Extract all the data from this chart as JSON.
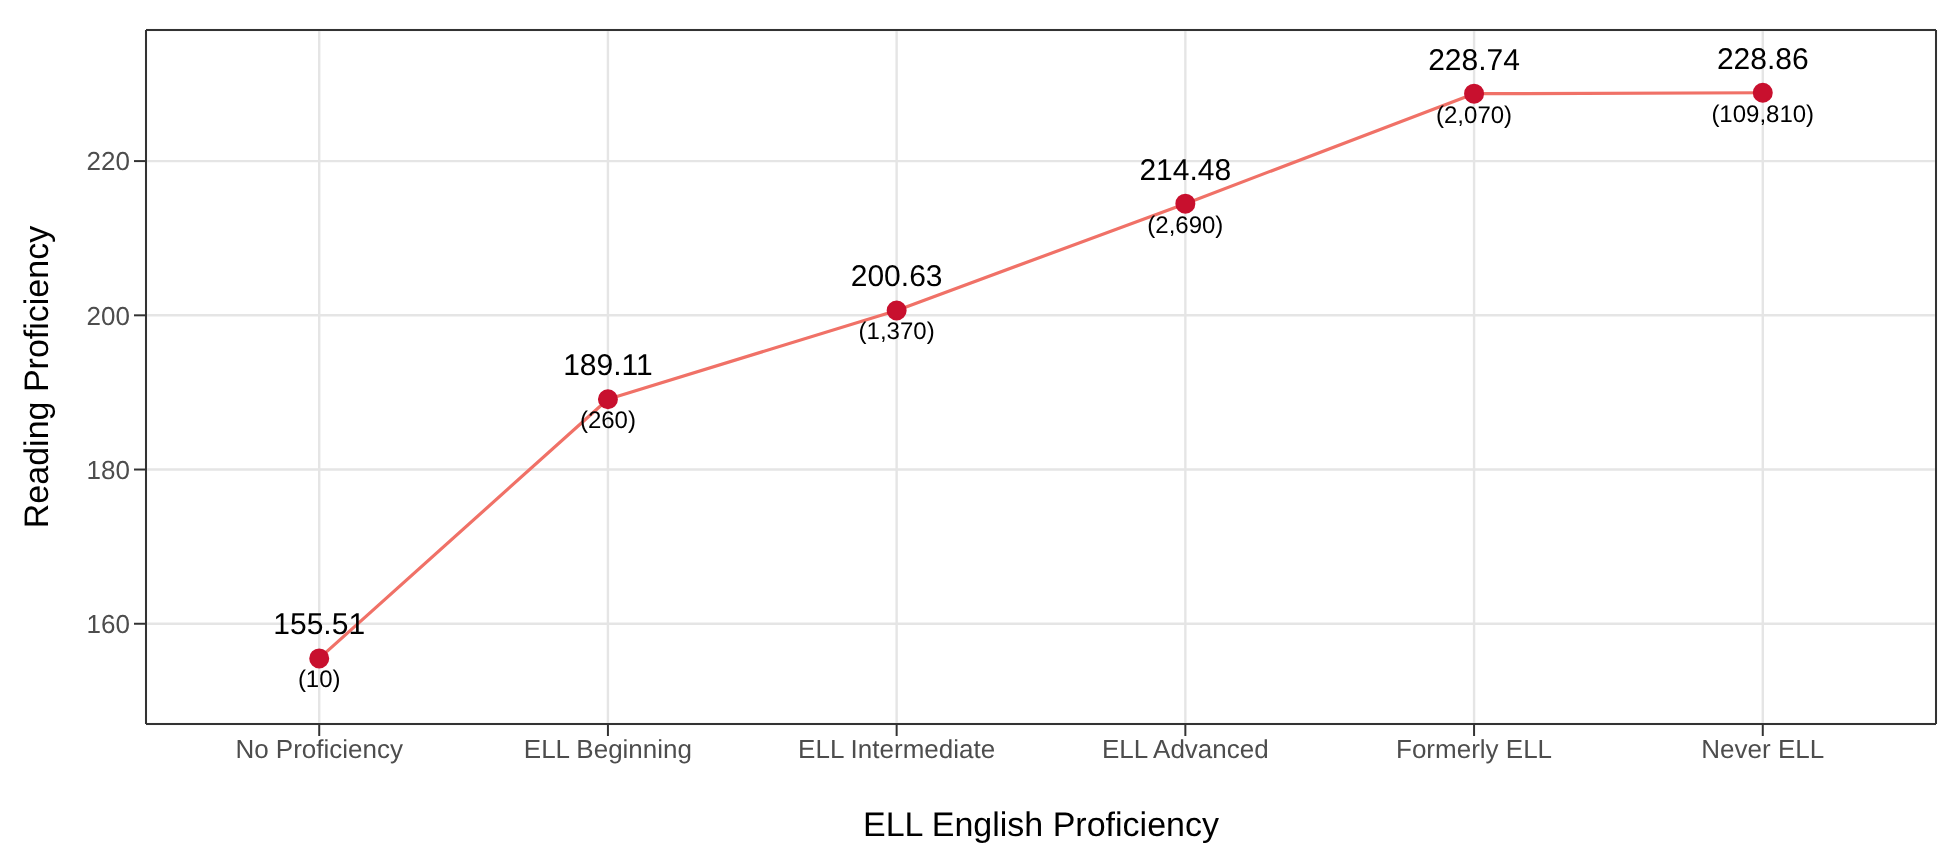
{
  "chart_data": {
    "type": "line",
    "xlabel": "ELL English Proficiency",
    "ylabel": "Reading Proficiency",
    "categories": [
      "No Proficiency",
      "ELL Beginning",
      "ELL Intermediate",
      "ELL Advanced",
      "Formerly ELL",
      "Never ELL"
    ],
    "series": [
      {
        "color": "#f07167",
        "colors": [
          "#c8102e",
          "#c8102e",
          "#c8102e",
          "#c8102e",
          "#c8102e",
          "#c8102e"
        ],
        "values": [
          155.51,
          189.11,
          200.63,
          214.48,
          228.74,
          228.86
        ]
      }
    ],
    "data_labels": true,
    "annotations": [
      {
        "text": "(10)",
        "x": "No Proficiency",
        "y": 155.51
      },
      {
        "text": "(260)",
        "x": "ELL Beginning",
        "y": 189.11
      },
      {
        "text": "(1,370)",
        "x": "ELL Intermediate",
        "y": 200.63
      },
      {
        "text": "(2,690)",
        "x": "ELL Advanced",
        "y": 214.48
      },
      {
        "text": "(2,070)",
        "x": "Formerly ELL",
        "y": 228.74
      },
      {
        "text": "(109,810)",
        "x": "Never ELL",
        "y": 228.86
      }
    ],
    "ylim": [
      147,
      237
    ],
    "yticks": [
      160,
      180,
      200,
      220
    ],
    "grid": true,
    "marker": "circle",
    "line_style": "solid"
  }
}
